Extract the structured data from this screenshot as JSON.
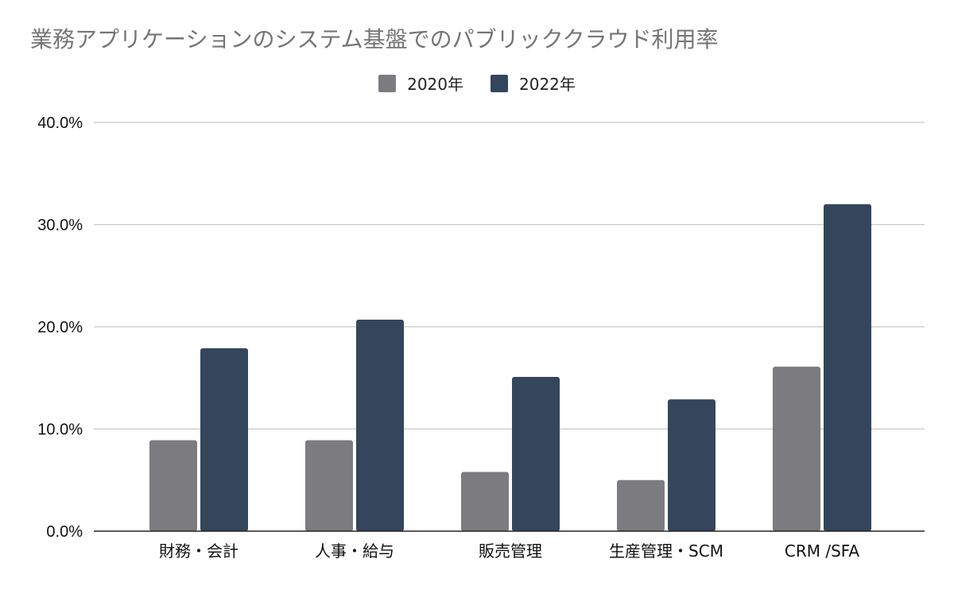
{
  "chart_data": {
    "type": "bar",
    "title": "業務アプリケーションのシステム基盤でのパブリッククラウド利用率",
    "xlabel": "",
    "ylabel": "",
    "categories": [
      "財務・会計",
      "人事・給与",
      "販売管理",
      "生産管理・SCM",
      "CRM /SFA"
    ],
    "series": [
      {
        "name": "2020年",
        "color": "#7c7b80",
        "values": [
          8.9,
          8.9,
          5.8,
          5.0,
          16.1
        ]
      },
      {
        "name": "2022年",
        "color": "#34465c",
        "values": [
          17.9,
          20.7,
          15.1,
          12.9,
          32.0
        ]
      }
    ],
    "ylim": [
      0,
      40
    ],
    "yticks": [
      "0.0%",
      "10.0%",
      "20.0%",
      "30.0%",
      "40.0%"
    ],
    "grid": true,
    "legend_position": "top-center"
  }
}
